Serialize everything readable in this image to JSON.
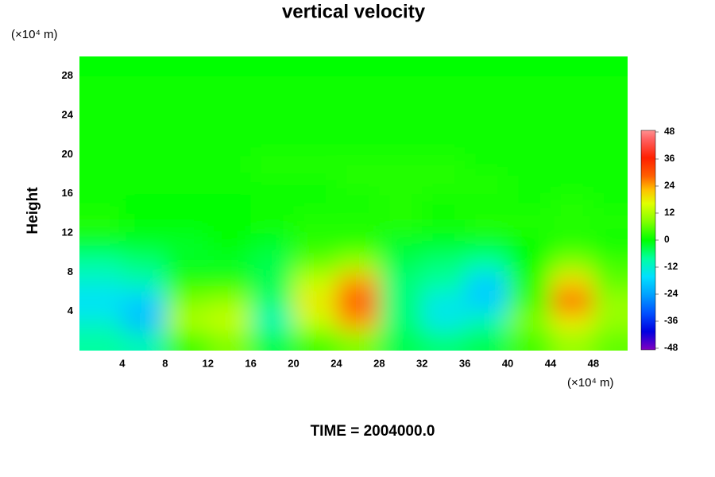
{
  "chart_data": {
    "type": "contour",
    "title": "vertical velocity",
    "y_unit": "(×10⁴ m)",
    "x_unit": "(×10⁴ m)",
    "ylabel": "Height",
    "footer": "TIME = 2004000.0",
    "xlim": [
      0,
      51.2
    ],
    "ylim": [
      0,
      30
    ],
    "xticks": [
      4,
      8,
      12,
      16,
      20,
      24,
      28,
      32,
      36,
      40,
      44,
      48
    ],
    "yticks": [
      4,
      8,
      12,
      16,
      20,
      24,
      28
    ],
    "x": [
      2,
      6,
      10,
      14,
      18,
      22,
      26,
      30,
      34,
      38,
      42,
      46,
      50
    ],
    "y": [
      1,
      3,
      5,
      7,
      9,
      11,
      13,
      15,
      17,
      19,
      21,
      23,
      25,
      27,
      29
    ],
    "z": [
      [
        -8,
        -10,
        4,
        8,
        -4,
        4,
        8,
        -4,
        -6,
        -4,
        4,
        10,
        6
      ],
      [
        -12,
        -20,
        12,
        14,
        -10,
        14,
        24,
        -6,
        -14,
        -10,
        8,
        18,
        10
      ],
      [
        -16,
        -18,
        8,
        10,
        -6,
        18,
        30,
        -6,
        -14,
        -18,
        4,
        28,
        10
      ],
      [
        -12,
        -10,
        2,
        2,
        -4,
        14,
        24,
        -6,
        -8,
        -18,
        2,
        20,
        6
      ],
      [
        -8,
        -6,
        -2,
        -2,
        -4,
        6,
        10,
        -4,
        -6,
        -8,
        0,
        8,
        4
      ],
      [
        -2,
        -2,
        -2,
        0,
        -2,
        2,
        2,
        -2,
        -2,
        -2,
        0,
        2,
        0
      ],
      [
        2,
        0,
        0,
        0,
        1,
        2,
        2,
        2,
        1,
        2,
        2,
        2,
        2
      ],
      [
        1,
        0,
        0,
        0,
        1,
        1,
        1,
        2,
        1,
        1,
        1,
        2,
        1
      ],
      [
        1,
        1,
        1,
        1,
        1,
        1,
        2,
        2,
        2,
        2,
        1,
        1,
        1
      ],
      [
        1,
        1,
        1,
        1,
        2,
        2,
        2,
        2,
        2,
        1,
        1,
        1,
        1
      ],
      [
        1,
        1,
        1,
        1,
        1,
        1,
        1,
        1,
        1,
        1,
        1,
        1,
        1
      ],
      [
        1,
        1,
        1,
        1,
        1,
        1,
        1,
        1,
        1,
        1,
        1,
        1,
        1
      ],
      [
        1,
        1,
        1,
        1,
        1,
        1,
        1,
        1,
        1,
        1,
        1,
        1,
        1
      ],
      [
        1,
        1,
        1,
        1,
        1,
        1,
        1,
        1,
        1,
        1,
        1,
        1,
        1
      ],
      [
        0,
        0,
        0,
        0,
        0,
        0,
        0,
        0,
        0,
        0,
        0,
        0,
        0
      ]
    ],
    "clim": [
      -48,
      48
    ],
    "cticks": [
      -48,
      -36,
      -24,
      -12,
      0,
      12,
      24,
      36,
      48
    ],
    "colorscale": [
      [
        -48,
        "#8000c0"
      ],
      [
        -40,
        "#0000e0"
      ],
      [
        -32,
        "#0050ff"
      ],
      [
        -24,
        "#00a0ff"
      ],
      [
        -16,
        "#00e0ff"
      ],
      [
        -8,
        "#00ffa0"
      ],
      [
        0,
        "#00ff00"
      ],
      [
        8,
        "#80ff00"
      ],
      [
        16,
        "#e0ff00"
      ],
      [
        22,
        "#ffc000"
      ],
      [
        28,
        "#ff6000"
      ],
      [
        36,
        "#ff2000"
      ],
      [
        44,
        "#ff6060"
      ],
      [
        48,
        "#ff9090"
      ]
    ]
  }
}
